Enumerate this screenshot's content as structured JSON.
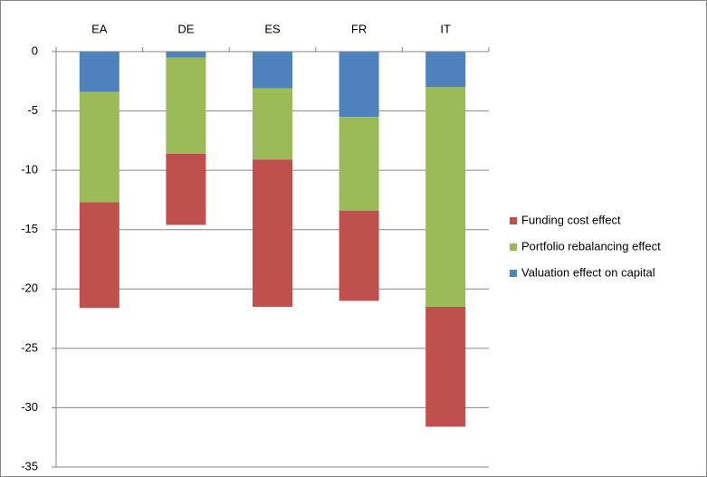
{
  "chart_data": {
    "type": "stacked_bar",
    "categories": [
      "EA",
      "DE",
      "ES",
      "FR",
      "IT"
    ],
    "series": [
      {
        "name": "Funding cost effect",
        "color": "#c0504d",
        "values": [
          -8.9,
          -6.0,
          -12.4,
          -7.6,
          -10.1
        ]
      },
      {
        "name": "Portfolio rebalancing effect",
        "color": "#9bbb59",
        "values": [
          -9.3,
          -8.1,
          -6.0,
          -7.9,
          -18.5
        ]
      },
      {
        "name": "Valuation effect on capital",
        "color": "#4f81bd",
        "values": [
          -3.4,
          -0.5,
          -3.1,
          -5.5,
          -3.0
        ]
      }
    ],
    "ylim": [
      -35,
      0
    ],
    "yticks": [
      0,
      -5,
      -10,
      -15,
      -20,
      -25,
      -30,
      -35
    ],
    "grid": true,
    "legend": "right"
  }
}
